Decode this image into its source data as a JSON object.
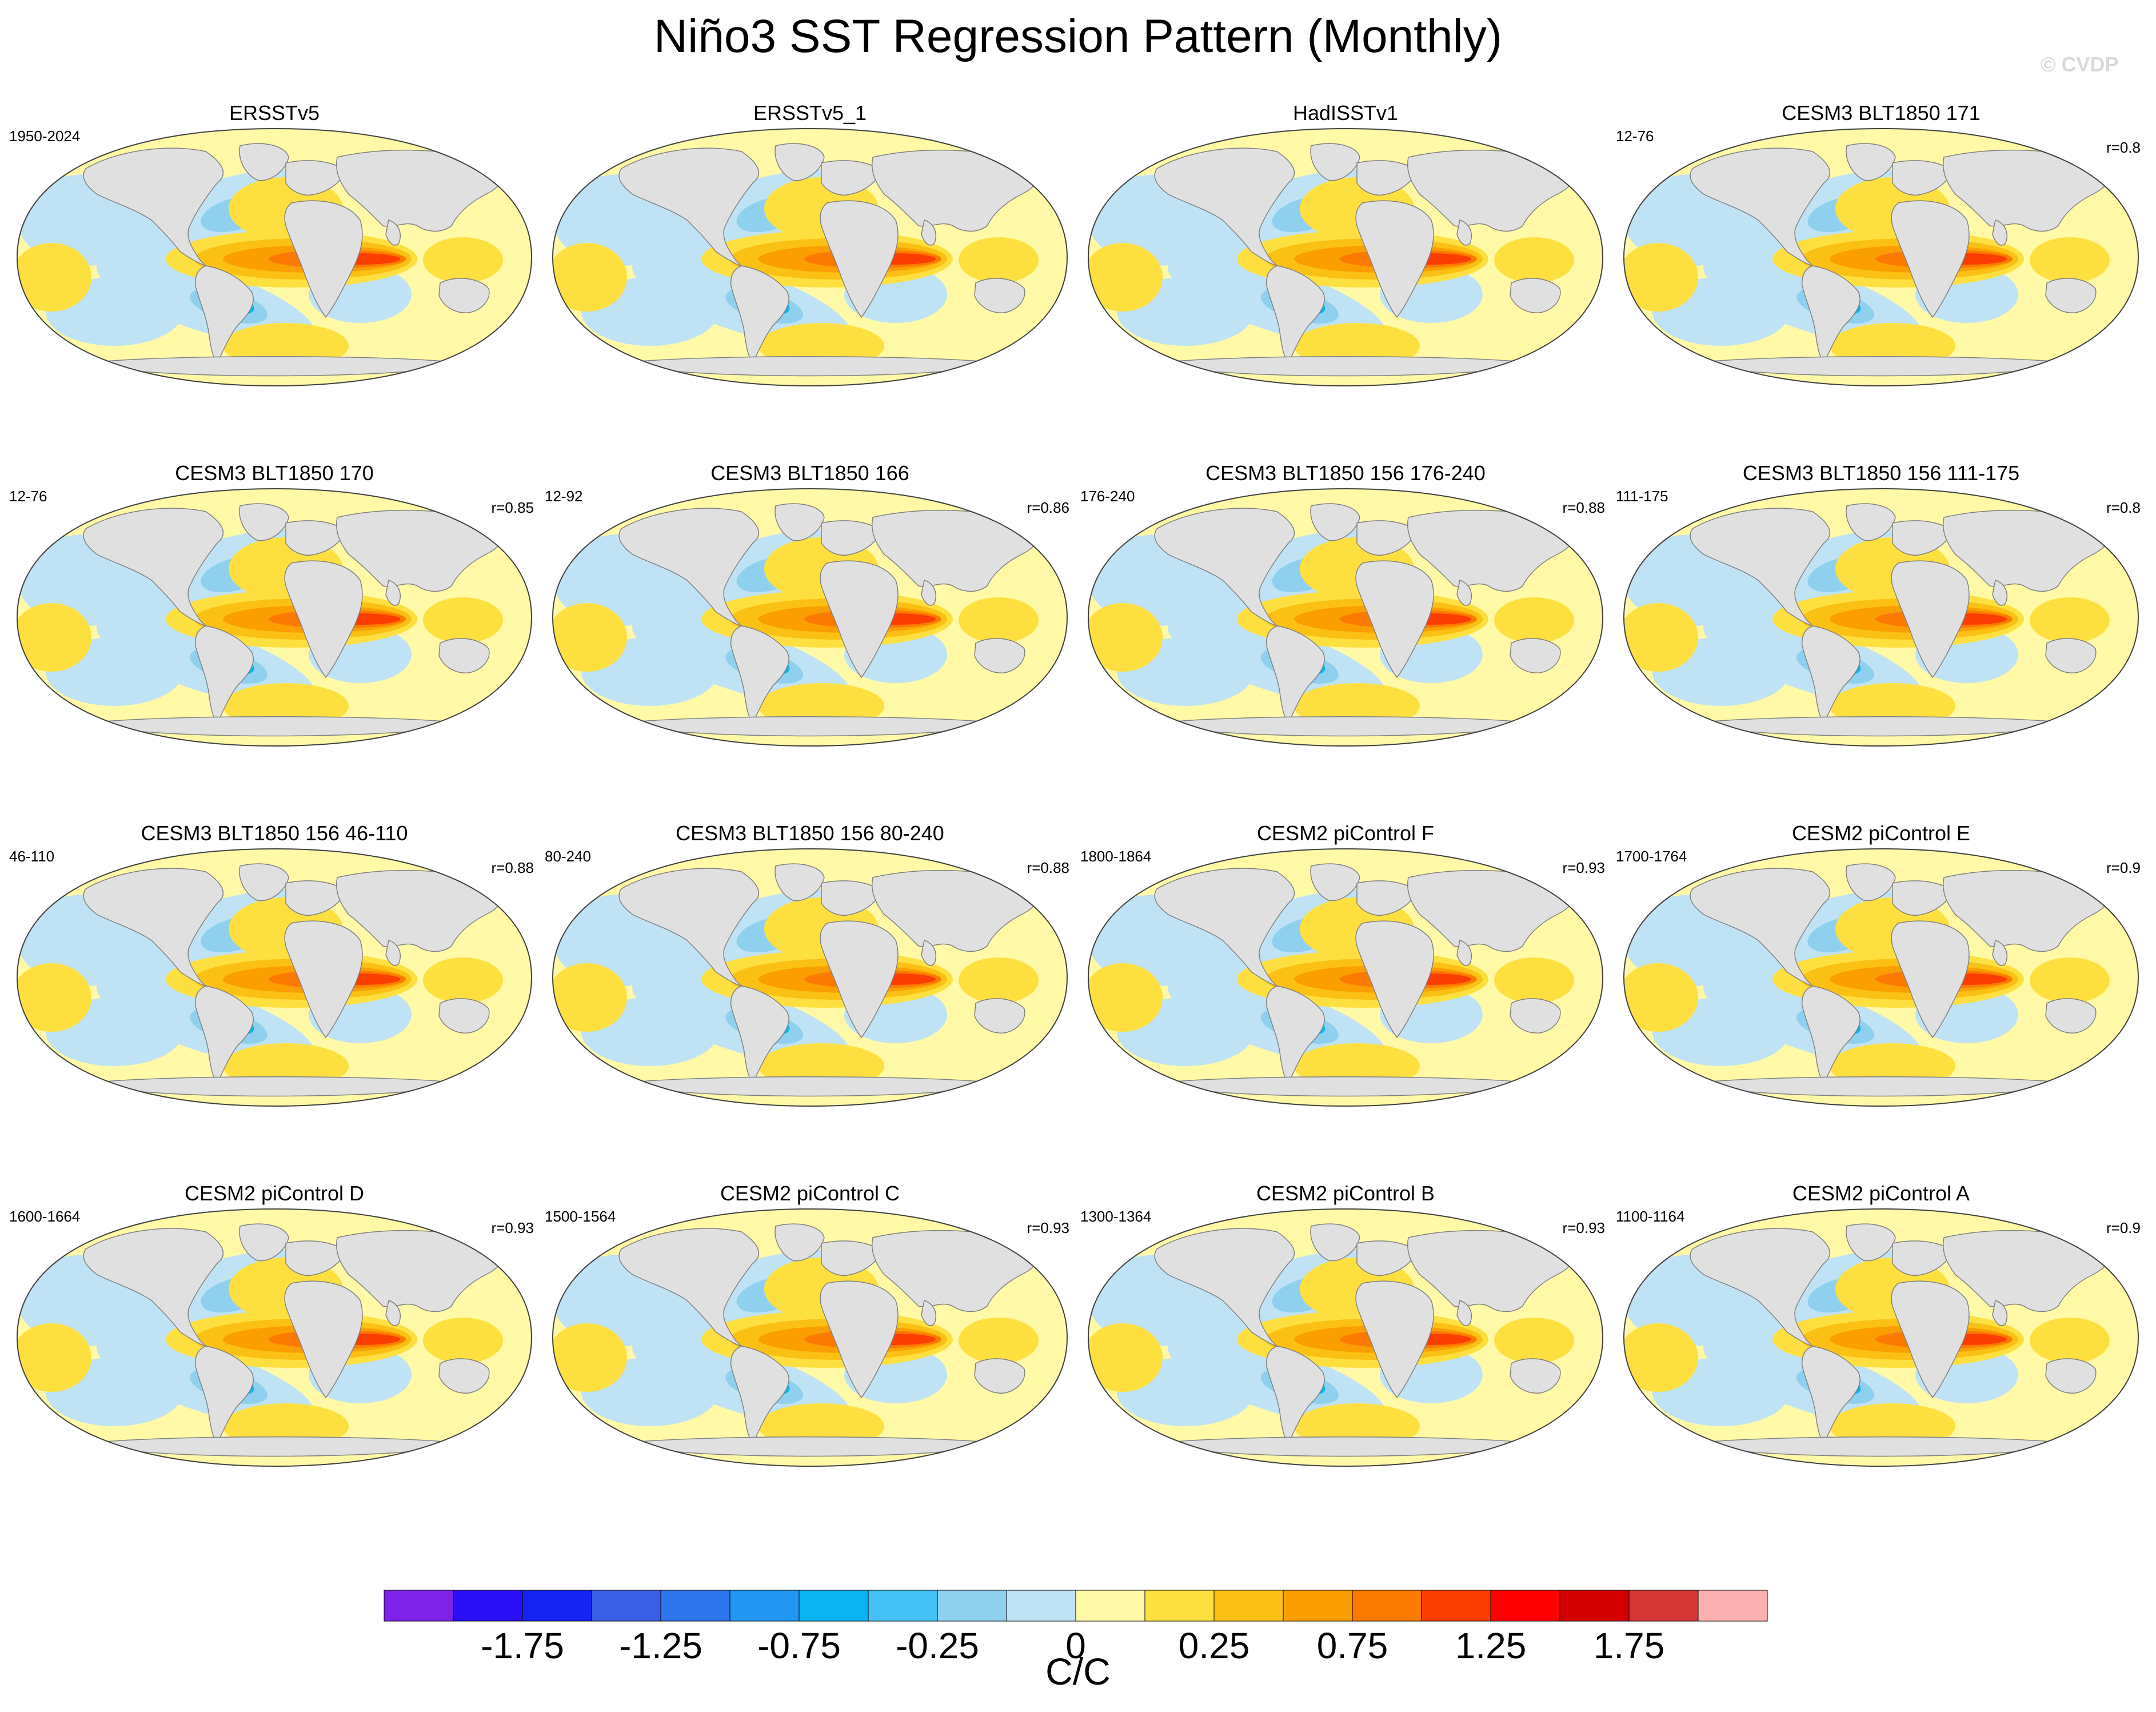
{
  "title": "Niño3 SST Regression Pattern (Monthly)",
  "watermark": "© CVDP",
  "chart_data": {
    "type": "contour-map-panels",
    "projection": "Robinson-like global map",
    "colors": {
      "ocean_neutral": "#fff9a8",
      "land": "#e0e0e0",
      "coast": "#808080"
    },
    "panels": [
      {
        "title": "ERSSTv5",
        "left": "1950-2024",
        "right": ""
      },
      {
        "title": "ERSSTv5_1",
        "left": "",
        "right": ""
      },
      {
        "title": "HadISSTv1",
        "left": "",
        "right": ""
      },
      {
        "title": "CESM3 BLT1850 171",
        "left": "12-76",
        "right": "r=0.8"
      },
      {
        "title": "CESM3 BLT1850 170",
        "left": "12-76",
        "right": "r=0.85"
      },
      {
        "title": "CESM3 BLT1850 166",
        "left": "12-92",
        "right": "r=0.86"
      },
      {
        "title": "CESM3 BLT1850 156 176-240",
        "left": "176-240",
        "right": "r=0.88"
      },
      {
        "title": "CESM3 BLT1850 156 111-175",
        "left": "111-175",
        "right": "r=0.8"
      },
      {
        "title": "CESM3 BLT1850 156 46-110",
        "left": "46-110",
        "right": "r=0.88"
      },
      {
        "title": "CESM3 BLT1850 156 80-240",
        "left": "80-240",
        "right": "r=0.88"
      },
      {
        "title": "CESM2 piControl F",
        "left": "1800-1864",
        "right": "r=0.93"
      },
      {
        "title": "CESM2 piControl E",
        "left": "1700-1764",
        "right": "r=0.9"
      },
      {
        "title": "CESM2 piControl D",
        "left": "1600-1664",
        "right": "r=0.93"
      },
      {
        "title": "CESM2 piControl C",
        "left": "1500-1564",
        "right": "r=0.93"
      },
      {
        "title": "CESM2 piControl B",
        "left": "1300-1364",
        "right": "r=0.93"
      },
      {
        "title": "CESM2 piControl A",
        "left": "1100-1164",
        "right": "r=0.9"
      }
    ],
    "colorbar": {
      "colors": [
        "#7e22e8",
        "#2a0ef5",
        "#1624f2",
        "#3b5ee6",
        "#2f76ec",
        "#2297f3",
        "#0cb4f4",
        "#45c2f5",
        "#8fd0ef",
        "#bfe2f5",
        "#fff9a8",
        "#fde040",
        "#fbc014",
        "#fb9e00",
        "#fb7a00",
        "#fb3d00",
        "#ff0000",
        "#d40000",
        "#d63535",
        "#fbb1b1"
      ],
      "tick_labels": [
        "-1.75",
        "-1.25",
        "-0.75",
        "-0.25",
        "0",
        "0.25",
        "0.75",
        "1.25",
        "1.75"
      ],
      "units": "C/C"
    }
  }
}
